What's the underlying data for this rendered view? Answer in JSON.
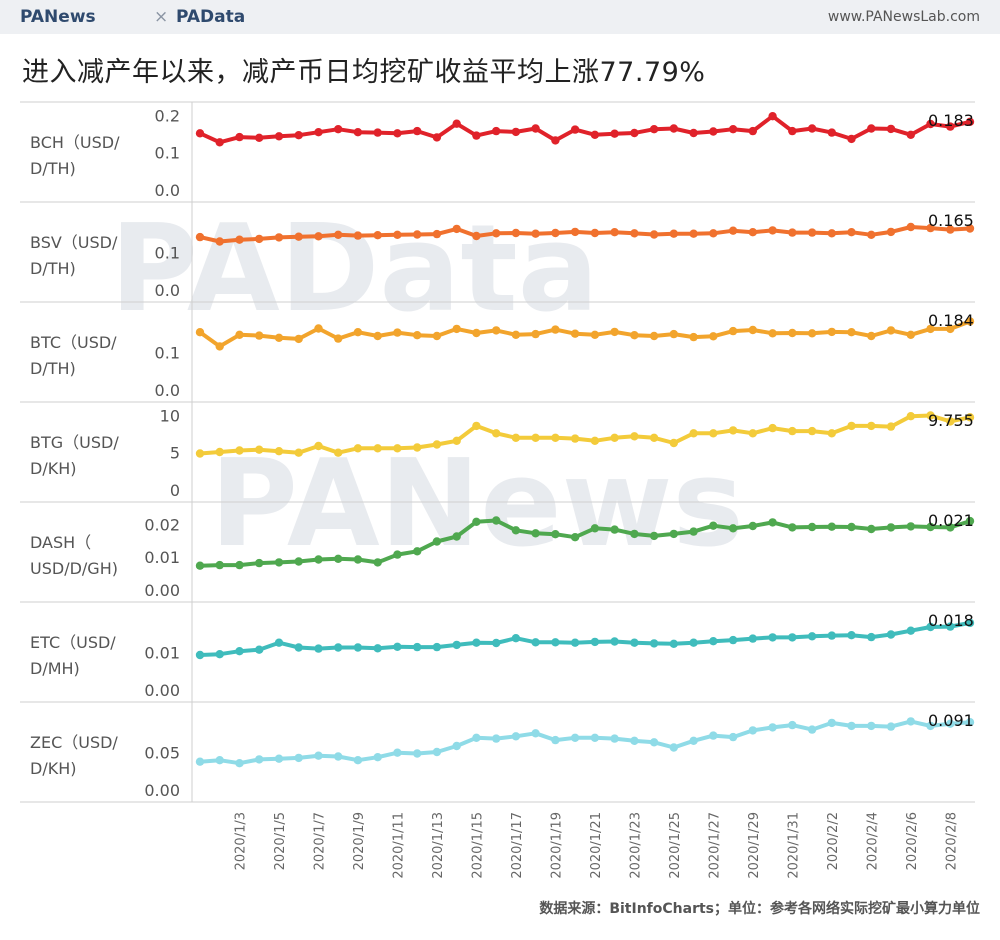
{
  "header": {
    "brand_left": "PANews",
    "separator": "×",
    "brand_right": "PAData",
    "site": "www.PANewsLab.com"
  },
  "title": "进入减产年以来，减产币日均挖矿收益平均上涨77.79%",
  "footer": "数据来源：BitInfoCharts；单位：参考各网络实际挖矿最小算力单位",
  "watermarks": {
    "top": "PAData",
    "bottom": "PANews"
  },
  "chart_data": {
    "type": "line",
    "title": "进入减产年以来，减产币日均挖矿收益平均上涨77.79%",
    "x": [
      "2020/1/1",
      "2020/1/2",
      "2020/1/3",
      "2020/1/4",
      "2020/1/5",
      "2020/1/6",
      "2020/1/7",
      "2020/1/8",
      "2020/1/9",
      "2020/1/10",
      "2020/1/11",
      "2020/1/12",
      "2020/1/13",
      "2020/1/14",
      "2020/1/15",
      "2020/1/16",
      "2020/1/17",
      "2020/1/18",
      "2020/1/19",
      "2020/1/20",
      "2020/1/21",
      "2020/1/22",
      "2020/1/23",
      "2020/1/24",
      "2020/1/25",
      "2020/1/26",
      "2020/1/27",
      "2020/1/28",
      "2020/1/29",
      "2020/1/30",
      "2020/1/31",
      "2020/2/1",
      "2020/2/2",
      "2020/2/3",
      "2020/2/4",
      "2020/2/5",
      "2020/2/6",
      "2020/2/7",
      "2020/2/8",
      "2020/2/9"
    ],
    "tick_labels": [
      "2020/1/3",
      "2020/1/5",
      "2020/1/7",
      "2020/1/9",
      "2020/1/11",
      "2020/1/13",
      "2020/1/15",
      "2020/1/17",
      "2020/1/19",
      "2020/1/21",
      "2020/1/23",
      "2020/1/25",
      "2020/1/27",
      "2020/1/29",
      "2020/1/31",
      "2020/2/2",
      "2020/2/4",
      "2020/2/6",
      "2020/2/8"
    ],
    "series": [
      {
        "name": "BCH",
        "ylabel": "BCH（USD/D/TH)",
        "ylabel_lines": [
          "BCH（USD/",
          "D/TH)"
        ],
        "color": "#e0222a",
        "ylim": [
          0,
          0.22
        ],
        "ticks": [
          0.0,
          0.1,
          0.2
        ],
        "tick_labels": [
          "0.0",
          "0.1",
          "0.2"
        ],
        "end_label": "0.183",
        "values": [
          0.152,
          0.128,
          0.142,
          0.14,
          0.144,
          0.147,
          0.155,
          0.163,
          0.155,
          0.154,
          0.152,
          0.158,
          0.141,
          0.178,
          0.146,
          0.158,
          0.156,
          0.165,
          0.133,
          0.162,
          0.148,
          0.151,
          0.153,
          0.163,
          0.165,
          0.153,
          0.157,
          0.163,
          0.158,
          0.198,
          0.158,
          0.165,
          0.154,
          0.137,
          0.165,
          0.164,
          0.148,
          0.177,
          0.17,
          0.183
        ]
      },
      {
        "name": "BSV",
        "ylabel": "BSV（USD/D/TH)",
        "ylabel_lines": [
          "BSV（USD/",
          "D/TH)"
        ],
        "color": "#f0712e",
        "ylim": [
          0,
          0.22
        ],
        "ticks": [
          0.0,
          0.1
        ],
        "tick_labels": [
          "0.0",
          "0.1"
        ],
        "end_label": "0.165",
        "values": [
          0.142,
          0.13,
          0.135,
          0.137,
          0.141,
          0.143,
          0.144,
          0.148,
          0.146,
          0.147,
          0.148,
          0.149,
          0.15,
          0.164,
          0.145,
          0.152,
          0.153,
          0.151,
          0.153,
          0.156,
          0.153,
          0.155,
          0.152,
          0.149,
          0.151,
          0.151,
          0.152,
          0.159,
          0.155,
          0.16,
          0.154,
          0.154,
          0.152,
          0.155,
          0.148,
          0.156,
          0.169,
          0.166,
          0.162,
          0.165
        ]
      },
      {
        "name": "BTC",
        "ylabel": "BTC（USD/D/TH)",
        "ylabel_lines": [
          "BTC（USD/",
          "D/TH)"
        ],
        "color": "#f2a42c",
        "ylim": [
          0,
          0.22
        ],
        "ticks": [
          0.0,
          0.1
        ],
        "tick_labels": [
          "0.0",
          "0.1"
        ],
        "end_label": "0.184",
        "values": [
          0.155,
          0.117,
          0.148,
          0.146,
          0.14,
          0.137,
          0.165,
          0.138,
          0.155,
          0.145,
          0.154,
          0.147,
          0.145,
          0.164,
          0.153,
          0.16,
          0.148,
          0.15,
          0.162,
          0.151,
          0.148,
          0.156,
          0.147,
          0.145,
          0.15,
          0.142,
          0.144,
          0.158,
          0.161,
          0.152,
          0.153,
          0.152,
          0.156,
          0.155,
          0.145,
          0.16,
          0.148,
          0.164,
          0.164,
          0.184
        ]
      },
      {
        "name": "BTG",
        "ylabel": "BTG（USD/D/KH)",
        "ylabel_lines": [
          "BTG（USD/",
          "D/KH)"
        ],
        "color": "#f3cb3a",
        "ylim": [
          0,
          11
        ],
        "ticks": [
          0,
          5,
          10
        ],
        "tick_labels": [
          "0",
          "5",
          "10"
        ],
        "end_label": "9.755",
        "values": [
          4.9,
          5.1,
          5.3,
          5.4,
          5.2,
          5.0,
          5.9,
          5.0,
          5.6,
          5.6,
          5.6,
          5.7,
          6.1,
          6.6,
          8.6,
          7.6,
          7.0,
          7.0,
          7.0,
          6.9,
          6.6,
          7.0,
          7.2,
          7.0,
          6.3,
          7.6,
          7.6,
          8.0,
          7.6,
          8.3,
          7.9,
          7.9,
          7.6,
          8.6,
          8.6,
          8.5,
          9.9,
          10.0,
          9.2,
          9.755
        ]
      },
      {
        "name": "DASH",
        "ylabel": "DASH（USD/D/GH)",
        "ylabel_lines": [
          "DASH（",
          "USD/D/GH)"
        ],
        "color": "#4fa84f",
        "ylim": [
          0,
          0.025
        ],
        "ticks": [
          0.0,
          0.01,
          0.02
        ],
        "tick_labels": [
          "0.00",
          "0.01",
          "0.02"
        ],
        "end_label": "0.021",
        "values": [
          0.0074,
          0.0076,
          0.0076,
          0.0082,
          0.0084,
          0.0087,
          0.0093,
          0.0095,
          0.0093,
          0.0084,
          0.0108,
          0.0118,
          0.0148,
          0.0163,
          0.0208,
          0.0212,
          0.0182,
          0.0173,
          0.017,
          0.0161,
          0.0188,
          0.0184,
          0.0171,
          0.0165,
          0.0171,
          0.0178,
          0.0196,
          0.0188,
          0.0195,
          0.0206,
          0.0191,
          0.0192,
          0.0193,
          0.0192,
          0.0186,
          0.0191,
          0.0194,
          0.0192,
          0.0191,
          0.021
        ]
      },
      {
        "name": "ETC",
        "ylabel": "ETC（USD/D/MH)",
        "ylabel_lines": [
          "ETC（USD/",
          "D/MH)"
        ],
        "color": "#3fbcbc",
        "ylim": [
          0,
          0.022
        ],
        "ticks": [
          0.0,
          0.01
        ],
        "tick_labels": [
          "0.00",
          "0.01"
        ],
        "end_label": "0.018",
        "values": [
          0.0094,
          0.0096,
          0.0104,
          0.0108,
          0.0127,
          0.0114,
          0.0111,
          0.0114,
          0.0114,
          0.0112,
          0.0116,
          0.0115,
          0.0115,
          0.0121,
          0.0127,
          0.0126,
          0.0139,
          0.0128,
          0.0128,
          0.0127,
          0.0129,
          0.013,
          0.0127,
          0.0125,
          0.0124,
          0.0127,
          0.0131,
          0.0134,
          0.0138,
          0.0141,
          0.0141,
          0.0144,
          0.0146,
          0.0147,
          0.0142,
          0.0149,
          0.0159,
          0.0169,
          0.017,
          0.018
        ]
      },
      {
        "name": "ZEC",
        "ylabel": "ZEC（USD/D/KH)",
        "ylabel_lines": [
          "ZEC（USD/",
          "D/KH)"
        ],
        "color": "#8fdbe7",
        "ylim": [
          0,
          0.11
        ],
        "ticks": [
          0.0,
          0.05
        ],
        "tick_labels": [
          "0.00",
          "0.05"
        ],
        "end_label": "0.091",
        "values": [
          0.038,
          0.04,
          0.036,
          0.041,
          0.042,
          0.043,
          0.046,
          0.045,
          0.04,
          0.044,
          0.05,
          0.049,
          0.051,
          0.059,
          0.07,
          0.069,
          0.072,
          0.076,
          0.067,
          0.07,
          0.07,
          0.069,
          0.066,
          0.064,
          0.057,
          0.066,
          0.073,
          0.071,
          0.08,
          0.084,
          0.087,
          0.081,
          0.09,
          0.086,
          0.086,
          0.085,
          0.092,
          0.086,
          0.089,
          0.091
        ]
      }
    ]
  }
}
